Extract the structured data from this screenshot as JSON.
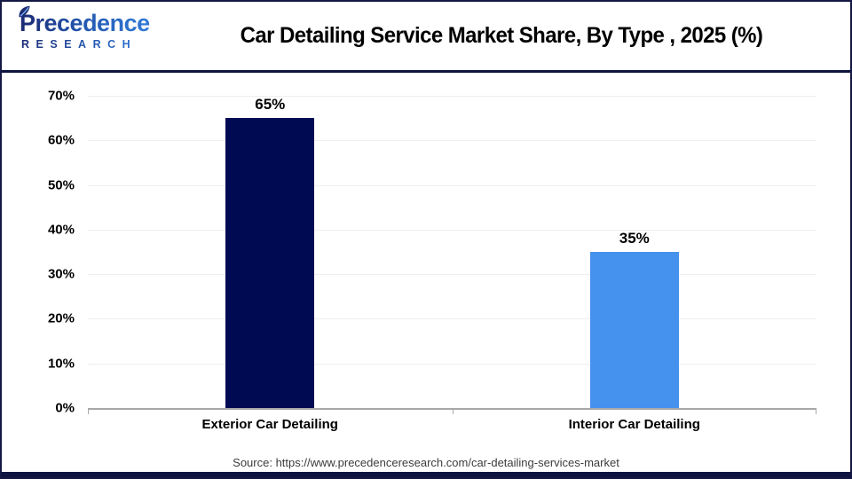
{
  "header": {
    "logo": {
      "brand": "Precedence",
      "subbrand": "RESEARCH",
      "gradient_start": "#1c2a73",
      "gradient_end": "#3380de"
    },
    "title": "Car Detailing Service Market Share, By Type , 2025 (%)"
  },
  "chart_data": {
    "type": "bar",
    "title": "Car Detailing Service Market Share, By Type , 2025 (%)",
    "categories": [
      "Exterior Car Detailing",
      "Interior Car Detailing"
    ],
    "values": [
      65,
      35
    ],
    "value_labels": [
      "65%",
      "35%"
    ],
    "bar_colors": [
      "#000a52",
      "#4591ee"
    ],
    "xlabel": "",
    "ylabel": "",
    "ylim": [
      0,
      70
    ],
    "yticks": [
      0,
      10,
      20,
      30,
      40,
      50,
      60,
      70
    ],
    "ytick_labels": [
      "0%",
      "10%",
      "20%",
      "30%",
      "40%",
      "50%",
      "60%",
      "70%"
    ],
    "grid": "horizontal",
    "gridline_color": "#efeeec",
    "axis_color": "#a8a8a8",
    "legend": "none"
  },
  "footer": {
    "source": "Source: https://www.precedenceresearch.com/car-detailing-services-market"
  },
  "colors": {
    "accent_navy": "#0e1440",
    "bar_navy": "#000a52",
    "bar_blue": "#4591ee",
    "page_border": "#141843"
  }
}
